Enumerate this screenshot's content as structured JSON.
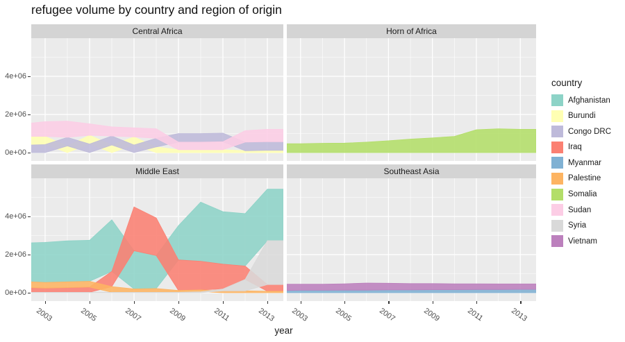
{
  "title": "refugee volume by country and region of origin",
  "x_axis": {
    "label": "year",
    "tick_labels": [
      "2003",
      "2005",
      "2007",
      "2009",
      "2011",
      "2013"
    ]
  },
  "y_axis": {
    "tick_labels": [
      "0e+00",
      "2e+06",
      "4e+06"
    ]
  },
  "legend": {
    "title": "country",
    "items": [
      {
        "label": "Afghanistan",
        "color": "#8DD3C7"
      },
      {
        "label": "Burundi",
        "color": "#FFFFB3"
      },
      {
        "label": "Congo DRC",
        "color": "#BEBADA"
      },
      {
        "label": "Iraq",
        "color": "#FB8072"
      },
      {
        "label": "Myanmar",
        "color": "#80B1D3"
      },
      {
        "label": "Palestine",
        "color": "#FDB462"
      },
      {
        "label": "Somalia",
        "color": "#B3DE69"
      },
      {
        "label": "Sudan",
        "color": "#FCCDE5"
      },
      {
        "label": "Syria",
        "color": "#D9D9D9"
      },
      {
        "label": "Vietnam",
        "color": "#BC80BD"
      }
    ]
  },
  "style": {
    "panel_bg": "#EBEBEB",
    "strip_bg": "#D4D4D4",
    "grid_color": "#FFFFFF",
    "area_opacity": 0.88
  },
  "chart_data": {
    "type": "area",
    "title": "refugee volume by country and region of origin",
    "xlabel": "year",
    "layout": "2x2 facet grid, shared axes, legend right",
    "stacking": "stacked areas re-ranked each year (smallest series at bottom), causing bands to weave",
    "x": [
      2002,
      2003,
      2004,
      2005,
      2006,
      2007,
      2008,
      2009,
      2010,
      2011,
      2012,
      2013
    ],
    "x_major_gridlines": [
      2003,
      2005,
      2007,
      2009,
      2011,
      2013
    ],
    "x_minor_gridlines": [
      2004,
      2006,
      2008,
      2010,
      2012
    ],
    "ylim": [
      0,
      6000000
    ],
    "y_major_gridlines": [
      0,
      2000000,
      4000000
    ],
    "y_minor_gridlines": [
      1000000,
      3000000,
      5000000
    ],
    "values_unit": "refugees (values given in millions)",
    "facets": [
      {
        "name": "Central Africa",
        "series": [
          {
            "name": "Burundi",
            "values_millions": [
              0.45,
              0.43,
              0.35,
              0.46,
              0.4,
              0.42,
              0.3,
              0.15,
              0.15,
              0.15,
              0.1,
              0.12
            ]
          },
          {
            "name": "Congo DRC",
            "values_millions": [
              0.4,
              0.42,
              0.45,
              0.45,
              0.47,
              0.4,
              0.45,
              0.45,
              0.45,
              0.45,
              0.45,
              0.45
            ]
          },
          {
            "name": "Sudan",
            "values_millions": [
              0.7,
              0.77,
              0.85,
              0.6,
              0.48,
              0.48,
              0.5,
              0.4,
              0.4,
              0.42,
              0.6,
              0.65
            ]
          }
        ]
      },
      {
        "name": "Horn of Africa",
        "series": [
          {
            "name": "Somalia",
            "values_millions": [
              0.47,
              0.47,
              0.49,
              0.5,
              0.55,
              0.62,
              0.71,
              0.77,
              0.85,
              1.2,
              1.25,
              1.22
            ]
          }
        ]
      },
      {
        "name": "Middle East",
        "series": [
          {
            "name": "Afghanistan",
            "values_millions": [
              2.05,
              2.1,
              2.15,
              2.15,
              2.7,
              2.0,
              1.73,
              1.8,
              3.1,
              2.75,
              2.75,
              2.7
            ]
          },
          {
            "name": "Iraq",
            "values_millions": [
              0.25,
              0.22,
              0.25,
              0.28,
              0.8,
              2.3,
              1.97,
              1.6,
              1.5,
              1.3,
              0.7,
              0.35
            ]
          },
          {
            "name": "Palestine",
            "values_millions": [
              0.3,
              0.3,
              0.3,
              0.3,
              0.3,
              0.18,
              0.2,
              0.1,
              0.1,
              0.1,
              0.1,
              0.08
            ]
          },
          {
            "name": "Syria",
            "values_millions": [
              0.02,
              0.02,
              0.02,
              0.02,
              0.02,
              0.02,
              0.02,
              0.02,
              0.05,
              0.1,
              0.6,
              2.3
            ]
          }
        ]
      },
      {
        "name": "Southeast Asia",
        "series": [
          {
            "name": "Myanmar",
            "values_millions": [
              0.12,
              0.13,
              0.13,
              0.14,
              0.14,
              0.15,
              0.15,
              0.16,
              0.16,
              0.17,
              0.17,
              0.18
            ]
          },
          {
            "name": "Vietnam",
            "values_millions": [
              0.33,
              0.32,
              0.32,
              0.33,
              0.37,
              0.35,
              0.33,
              0.32,
              0.31,
              0.3,
              0.29,
              0.28
            ]
          }
        ]
      }
    ]
  }
}
